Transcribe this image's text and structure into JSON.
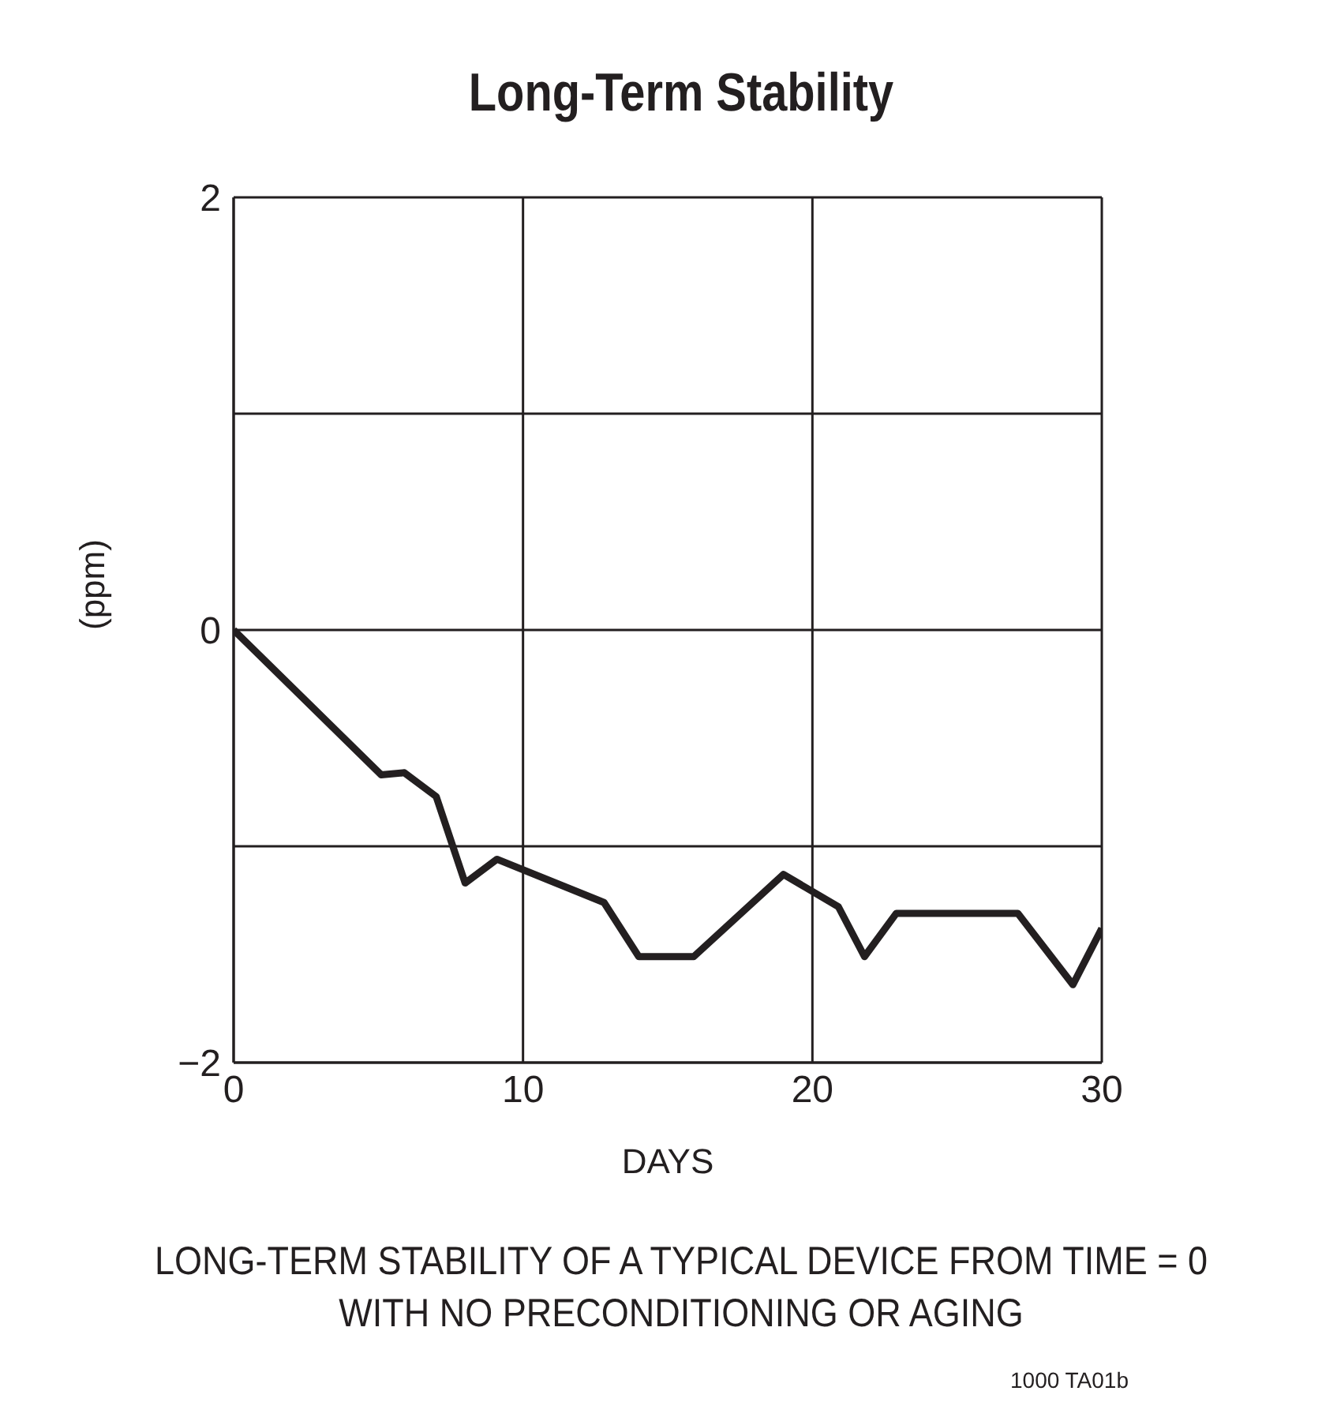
{
  "chart_data": {
    "type": "line",
    "title": "Long-Term Stability",
    "xlabel": "DAYS",
    "ylabel": "(ppm)",
    "x": [
      0,
      5.1,
      5.9,
      7,
      8,
      9.1,
      12.8,
      14,
      15.9,
      19,
      20.9,
      21.8,
      22.9,
      27.1,
      29,
      30
    ],
    "series": [
      {
        "color": "#231f20",
        "values": [
          0,
          -0.67,
          -0.66,
          -0.77,
          -1.17,
          -1.06,
          -1.26,
          -1.51,
          -1.51,
          -1.13,
          -1.28,
          -1.51,
          -1.31,
          -1.31,
          -1.64,
          -1.38
        ]
      }
    ],
    "xlim": [
      0,
      30
    ],
    "xticks": [
      0,
      10,
      20,
      30
    ],
    "ylim": [
      -2,
      2
    ],
    "yticks": [
      {
        "value": -2,
        "label": "−2"
      },
      {
        "value": -1,
        "label": null
      },
      0,
      {
        "value": 1,
        "label": null
      },
      2
    ],
    "grid": true,
    "marker": "none",
    "line_style": "solid",
    "annotations": [
      "LONG-TERM STABILITY OF A TYPICAL DEVICE FROM TIME = 0\nWITH NO PRECONDITIONING OR AGING",
      "1000 TA01b"
    ]
  }
}
